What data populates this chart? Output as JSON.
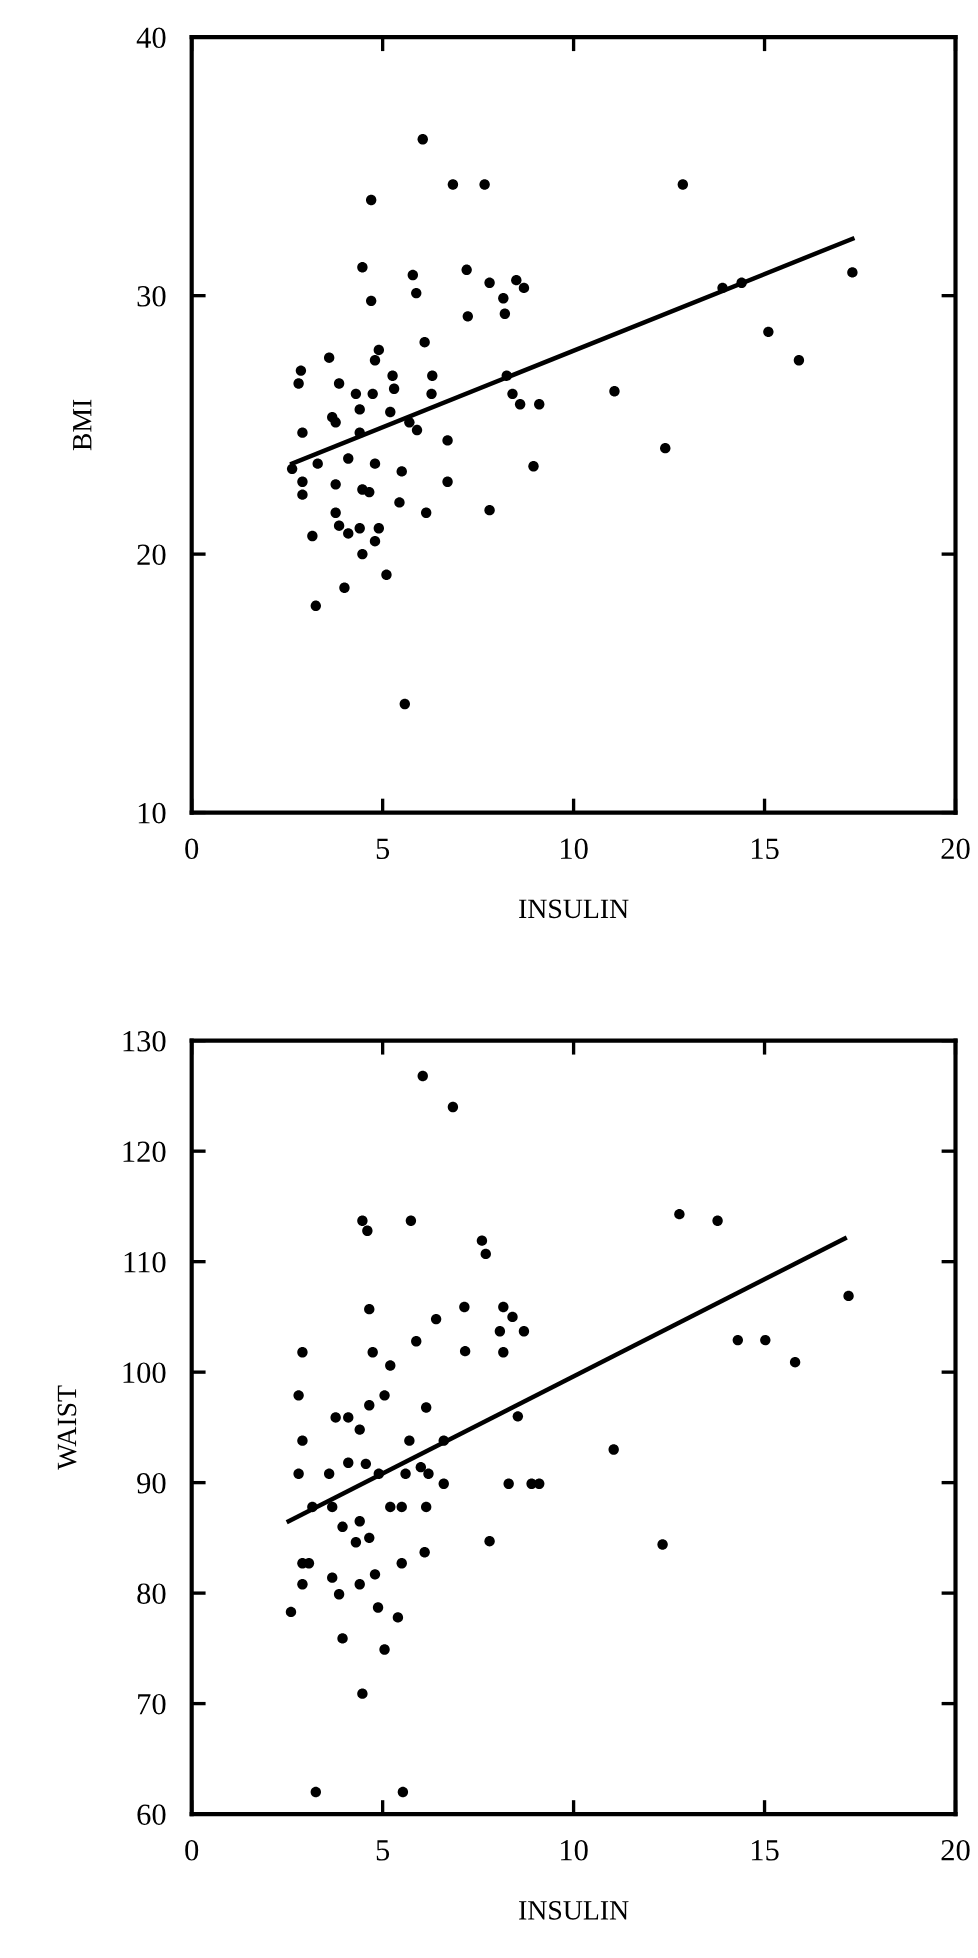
{
  "chart_data": [
    {
      "type": "scatter",
      "xlabel": "INSULIN",
      "ylabel": "BMI",
      "xlim": [
        0,
        20
      ],
      "ylim": [
        10,
        40
      ],
      "xticks": [
        0,
        5,
        10,
        15,
        20
      ],
      "yticks": [
        10,
        20,
        30,
        40
      ],
      "grid": false,
      "series": [
        {
          "color": "#000000",
          "marker": "circle",
          "x": [
            6.05,
            4.7,
            6.84,
            7.67,
            4.47,
            5.79,
            5.88,
            7.2,
            7.8,
            8.5,
            8.7,
            8.16,
            8.2,
            7.23,
            4.7,
            6.1,
            4.9,
            4.8,
            3.6,
            2.86,
            2.8,
            3.86,
            4.3,
            4.74,
            5.26,
            5.3,
            6.3,
            6.28,
            8.25,
            8.4,
            8.6,
            9.1,
            3.68,
            3.77,
            4.4,
            5.2,
            5.7,
            5.9,
            2.9,
            4.4,
            6.7,
            2.63,
            3.3,
            4.1,
            4.8,
            5.5,
            6.7,
            8.95,
            2.9,
            2.9,
            3.77,
            4.47,
            4.65,
            5.44,
            6.14,
            7.8,
            3.77,
            3.86,
            4.1,
            4.4,
            4.9,
            3.16,
            4.8,
            4.47,
            5.1,
            4.0,
            3.25,
            5.58,
            12.86,
            17.3,
            13.9,
            14.4,
            15.1,
            15.9,
            11.07,
            12.4
          ],
          "values": [
            36.05,
            33.7,
            34.3,
            34.3,
            31.1,
            30.8,
            30.1,
            31,
            30.5,
            30.6,
            30.3,
            29.9,
            29.3,
            29.2,
            29.8,
            28.2,
            27.9,
            27.5,
            27.6,
            27.1,
            26.6,
            26.6,
            26.2,
            26.2,
            26.9,
            26.4,
            26.9,
            26.2,
            26.9,
            26.2,
            25.8,
            25.8,
            25.3,
            25.1,
            25.6,
            25.5,
            25.1,
            24.8,
            24.7,
            24.7,
            24.4,
            23.3,
            23.5,
            23.7,
            23.5,
            23.2,
            22.8,
            23.4,
            22.8,
            22.3,
            22.7,
            22.5,
            22.4,
            22,
            21.6,
            21.7,
            21.6,
            21.1,
            20.8,
            21,
            21,
            20.7,
            20.5,
            20,
            19.2,
            18.7,
            18,
            14.2,
            34.3,
            30.9,
            30.3,
            30.5,
            28.6,
            27.5,
            26.3,
            24.1
          ]
        },
        {
          "type": "line",
          "color": "#000000",
          "line_style": "solid",
          "x": [
            2.63,
            17.3
          ],
          "values": [
            23.5,
            32.2
          ]
        }
      ]
    },
    {
      "type": "scatter",
      "xlabel": "INSULIN",
      "ylabel": "WAIST",
      "xlim": [
        0,
        20
      ],
      "ylim": [
        60,
        130
      ],
      "xticks": [
        0,
        5,
        10,
        15,
        20
      ],
      "yticks": [
        60,
        70,
        80,
        90,
        100,
        110,
        120,
        130
      ],
      "grid": false,
      "series": [
        {
          "color": "#000000",
          "marker": "circle",
          "x": [
            6.05,
            6.84,
            4.47,
            4.6,
            5.74,
            7.6,
            7.7,
            4.65,
            6.4,
            7.14,
            8.16,
            8.4,
            8.7,
            8.07,
            7.16,
            8.16,
            5.88,
            2.9,
            4.74,
            5.2,
            2.8,
            5.05,
            4.65,
            6.14,
            8.54,
            3.77,
            4.1,
            4.4,
            2.9,
            5.7,
            6.6,
            4.1,
            4.56,
            4.9,
            5.6,
            6.0,
            6.2,
            2.8,
            3.6,
            6.6,
            8.3,
            8.9,
            9.1,
            3.16,
            3.68,
            5.2,
            5.5,
            6.14,
            3.95,
            4.4,
            4.65,
            4.3,
            7.8,
            2.9,
            3.07,
            5.5,
            6.1,
            2.9,
            3.68,
            3.86,
            4.4,
            4.8,
            2.6,
            4.88,
            5.4,
            3.95,
            5.05,
            4.47,
            3.25,
            5.53,
            12.77,
            13.77,
            17.2,
            14.3,
            15.02,
            15.8,
            11.05,
            12.33
          ],
          "values": [
            126.8,
            124,
            113.7,
            112.8,
            113.7,
            111.9,
            110.7,
            105.7,
            104.8,
            105.9,
            105.9,
            105,
            103.7,
            103.7,
            101.9,
            101.8,
            102.8,
            101.8,
            101.8,
            100.6,
            97.9,
            97.9,
            97,
            96.8,
            96,
            95.9,
            95.9,
            94.8,
            93.8,
            93.8,
            93.8,
            91.8,
            91.7,
            90.8,
            90.8,
            91.4,
            90.8,
            90.8,
            90.8,
            89.9,
            89.9,
            89.9,
            89.9,
            87.8,
            87.8,
            87.8,
            87.8,
            87.8,
            86,
            86.5,
            85,
            84.6,
            84.7,
            82.7,
            82.7,
            82.7,
            83.7,
            80.8,
            81.4,
            79.9,
            80.8,
            81.7,
            78.3,
            78.7,
            77.8,
            75.9,
            74.9,
            70.9,
            62,
            62,
            114.3,
            113.7,
            106.9,
            102.9,
            102.9,
            100.9,
            93,
            84.4
          ]
        },
        {
          "type": "line",
          "color": "#000000",
          "line_style": "solid",
          "x": [
            2.54,
            17.1
          ],
          "values": [
            86.5,
            112.1
          ]
        }
      ]
    }
  ]
}
